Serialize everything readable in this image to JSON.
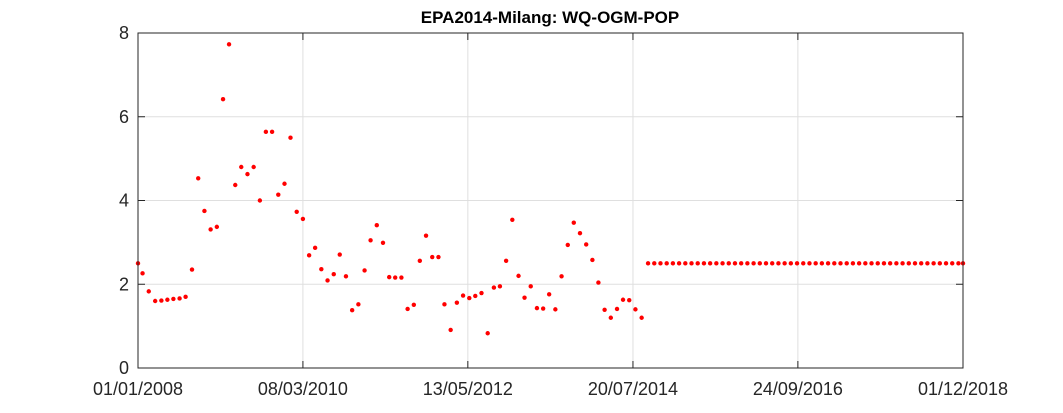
{
  "chart_data": {
    "type": "scatter",
    "title": "EPA2014-Milang: WQ-OGM-POP",
    "xlabel": "",
    "ylabel": "",
    "x_axis_type": "date",
    "xlim": [
      "2008-01-01",
      "2018-12-01"
    ],
    "ylim": [
      0,
      8
    ],
    "x_ticks": [
      "2008-01-01",
      "2010-03-08",
      "2012-05-13",
      "2014-07-20",
      "2016-09-24",
      "2018-12-01"
    ],
    "x_tick_labels": [
      "01/01/2008",
      "08/03/2010",
      "13/05/2012",
      "20/07/2014",
      "24/09/2016",
      "01/12/2018"
    ],
    "y_ticks": [
      0,
      2,
      4,
      6,
      8
    ],
    "y_tick_labels": [
      "0",
      "2",
      "4",
      "6",
      "8"
    ],
    "grid": true,
    "marker_color": "#ff0000",
    "series": [
      {
        "points": [
          [
            "2008-01-01",
            2.5
          ],
          [
            "2008-01-23",
            2.26
          ],
          [
            "2008-02-22",
            1.83
          ],
          [
            "2008-03-24",
            1.6
          ],
          [
            "2008-04-23",
            1.61
          ],
          [
            "2008-05-22",
            1.63
          ],
          [
            "2008-06-20",
            1.65
          ],
          [
            "2008-07-20",
            1.66
          ],
          [
            "2008-08-18",
            1.7
          ],
          [
            "2008-09-18",
            2.35
          ],
          [
            "2008-10-18",
            4.53
          ],
          [
            "2008-11-17",
            3.75
          ],
          [
            "2008-12-17",
            3.31
          ],
          [
            "2009-01-16",
            3.37
          ],
          [
            "2009-02-15",
            6.42
          ],
          [
            "2009-03-16",
            7.73
          ],
          [
            "2009-04-15",
            4.37
          ],
          [
            "2009-05-14",
            4.8
          ],
          [
            "2009-06-13",
            4.63
          ],
          [
            "2009-07-13",
            4.8
          ],
          [
            "2009-08-12",
            4.0
          ],
          [
            "2009-09-10",
            5.64
          ],
          [
            "2009-10-10",
            5.64
          ],
          [
            "2009-11-09",
            4.14
          ],
          [
            "2009-12-09",
            4.4
          ],
          [
            "2010-01-07",
            5.5
          ],
          [
            "2010-02-06",
            3.73
          ],
          [
            "2010-03-08",
            3.56
          ],
          [
            "2010-04-07",
            2.69
          ],
          [
            "2010-05-06",
            2.87
          ],
          [
            "2010-06-05",
            2.36
          ],
          [
            "2010-07-05",
            2.09
          ],
          [
            "2010-08-04",
            2.24
          ],
          [
            "2010-09-02",
            2.71
          ],
          [
            "2010-10-02",
            2.19
          ],
          [
            "2010-11-01",
            1.38
          ],
          [
            "2010-12-01",
            1.52
          ],
          [
            "2010-12-31",
            2.33
          ],
          [
            "2011-01-29",
            3.05
          ],
          [
            "2011-02-28",
            3.41
          ],
          [
            "2011-03-30",
            2.99
          ],
          [
            "2011-04-29",
            2.17
          ],
          [
            "2011-05-28",
            2.16
          ],
          [
            "2011-06-27",
            2.16
          ],
          [
            "2011-07-27",
            1.41
          ],
          [
            "2011-08-26",
            1.51
          ],
          [
            "2011-09-24",
            2.56
          ],
          [
            "2011-10-24",
            3.16
          ],
          [
            "2011-11-23",
            2.65
          ],
          [
            "2011-12-23",
            2.65
          ],
          [
            "2012-01-21",
            1.52
          ],
          [
            "2012-02-20",
            0.91
          ],
          [
            "2012-03-21",
            1.56
          ],
          [
            "2012-04-20",
            1.73
          ],
          [
            "2012-05-20",
            1.67
          ],
          [
            "2012-06-18",
            1.72
          ],
          [
            "2012-07-18",
            1.79
          ],
          [
            "2012-08-17",
            0.83
          ],
          [
            "2012-09-16",
            1.92
          ],
          [
            "2012-10-15",
            1.95
          ],
          [
            "2012-11-14",
            2.56
          ],
          [
            "2012-12-14",
            3.54
          ],
          [
            "2013-01-13",
            2.2
          ],
          [
            "2013-02-11",
            1.68
          ],
          [
            "2013-03-13",
            1.95
          ],
          [
            "2013-04-12",
            1.43
          ],
          [
            "2013-05-12",
            1.42
          ],
          [
            "2013-06-10",
            1.76
          ],
          [
            "2013-07-10",
            1.4
          ],
          [
            "2013-08-09",
            2.19
          ],
          [
            "2013-09-08",
            2.94
          ],
          [
            "2013-10-07",
            3.47
          ],
          [
            "2013-11-06",
            3.22
          ],
          [
            "2013-12-06",
            2.95
          ],
          [
            "2014-01-05",
            2.58
          ],
          [
            "2014-02-03",
            2.04
          ],
          [
            "2014-03-05",
            1.39
          ],
          [
            "2014-04-04",
            1.2
          ],
          [
            "2014-05-04",
            1.41
          ],
          [
            "2014-06-02",
            1.63
          ],
          [
            "2014-07-02",
            1.62
          ],
          [
            "2014-08-01",
            1.4
          ],
          [
            "2014-08-31",
            1.2
          ],
          [
            "2014-10-01",
            2.5
          ],
          [
            "2014-10-31",
            2.5
          ],
          [
            "2014-11-30",
            2.5
          ],
          [
            "2014-12-30",
            2.5
          ],
          [
            "2015-01-29",
            2.5
          ],
          [
            "2015-02-28",
            2.5
          ],
          [
            "2015-03-30",
            2.5
          ],
          [
            "2015-04-29",
            2.5
          ],
          [
            "2015-05-29",
            2.5
          ],
          [
            "2015-06-28",
            2.5
          ],
          [
            "2015-07-28",
            2.5
          ],
          [
            "2015-08-27",
            2.5
          ],
          [
            "2015-09-26",
            2.5
          ],
          [
            "2015-10-26",
            2.5
          ],
          [
            "2015-11-25",
            2.5
          ],
          [
            "2015-12-25",
            2.5
          ],
          [
            "2016-01-24",
            2.5
          ],
          [
            "2016-02-23",
            2.5
          ],
          [
            "2016-03-24",
            2.5
          ],
          [
            "2016-04-23",
            2.5
          ],
          [
            "2016-05-23",
            2.5
          ],
          [
            "2016-06-22",
            2.5
          ],
          [
            "2016-07-22",
            2.5
          ],
          [
            "2016-08-21",
            2.5
          ],
          [
            "2016-09-20",
            2.5
          ],
          [
            "2016-10-20",
            2.5
          ],
          [
            "2016-11-19",
            2.5
          ],
          [
            "2016-12-19",
            2.5
          ],
          [
            "2017-01-18",
            2.5
          ],
          [
            "2017-02-17",
            2.5
          ],
          [
            "2017-03-19",
            2.5
          ],
          [
            "2017-04-18",
            2.5
          ],
          [
            "2017-05-18",
            2.5
          ],
          [
            "2017-06-17",
            2.5
          ],
          [
            "2017-07-17",
            2.5
          ],
          [
            "2017-08-16",
            2.5
          ],
          [
            "2017-09-15",
            2.5
          ],
          [
            "2017-10-15",
            2.5
          ],
          [
            "2017-11-14",
            2.5
          ],
          [
            "2017-12-14",
            2.5
          ],
          [
            "2018-01-13",
            2.5
          ],
          [
            "2018-02-12",
            2.5
          ],
          [
            "2018-03-14",
            2.5
          ],
          [
            "2018-04-13",
            2.5
          ],
          [
            "2018-05-13",
            2.5
          ],
          [
            "2018-06-12",
            2.5
          ],
          [
            "2018-07-12",
            2.5
          ],
          [
            "2018-08-11",
            2.5
          ],
          [
            "2018-09-10",
            2.5
          ],
          [
            "2018-10-10",
            2.5
          ],
          [
            "2018-11-09",
            2.5
          ],
          [
            "2018-12-01",
            2.5
          ]
        ]
      }
    ]
  }
}
